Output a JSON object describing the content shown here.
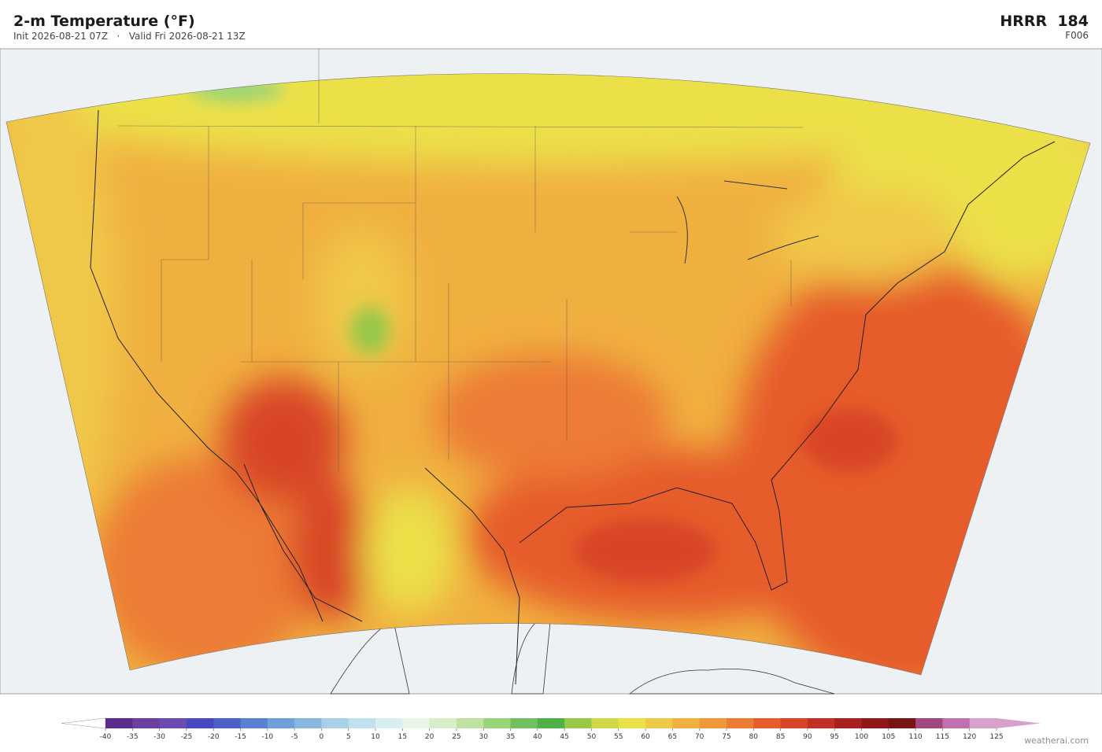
{
  "header": {
    "title": "2-m Temperature  (°F)",
    "subtitle": "Init 2026-08-21 07Z   ·   Valid Fri 2026-08-21 13Z",
    "model": "HRRR  184",
    "forecast_hour": "F006"
  },
  "colorbar": {
    "ticks": [
      -40,
      -35,
      -30,
      -25,
      -20,
      -15,
      -10,
      -5,
      0,
      5,
      10,
      15,
      20,
      25,
      30,
      35,
      40,
      45,
      50,
      55,
      60,
      65,
      70,
      75,
      80,
      85,
      90,
      95,
      100,
      105,
      110,
      115,
      120,
      125
    ],
    "colors": [
      "#5a2d8c",
      "#6a3fa0",
      "#6c4cb0",
      "#4848c0",
      "#4c60c8",
      "#5a80d0",
      "#70a0d8",
      "#88b8e0",
      "#a8d0e8",
      "#c0e2ee",
      "#d8eff2",
      "#e8f6e8",
      "#d8eec8",
      "#c0e2a0",
      "#98d478",
      "#70c060",
      "#50b048",
      "#98c848",
      "#d0d848",
      "#ece048",
      "#f0c848",
      "#f0b040",
      "#ee9838",
      "#ec7c34",
      "#e65c2c",
      "#d84428",
      "#c03024",
      "#a82020",
      "#901818",
      "#781414",
      "#a04880",
      "#c070b0",
      "#d8a0cc"
    ]
  },
  "credit": "weatherai.com"
}
